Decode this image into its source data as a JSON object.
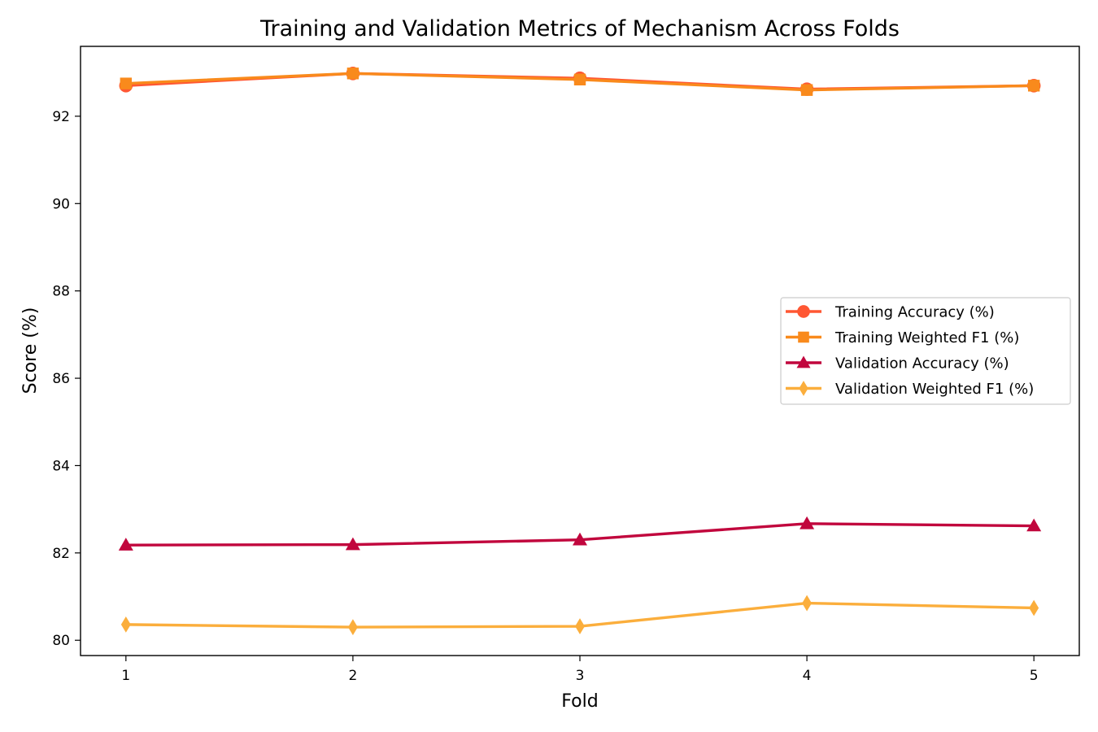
{
  "chart_data": {
    "type": "line",
    "title": "Training and Validation Metrics of Mechanism Across Folds",
    "xlabel": "Fold",
    "ylabel": "Score (%)",
    "x": [
      1,
      2,
      3,
      4,
      5
    ],
    "xlim": [
      0.8,
      5.2
    ],
    "ylim": [
      79.65,
      93.6
    ],
    "xticks": [
      1,
      2,
      3,
      4,
      5
    ],
    "yticks": [
      80,
      82,
      84,
      86,
      88,
      90,
      92
    ],
    "grid": false,
    "legend_position": "center-right",
    "series": [
      {
        "name": "Training Accuracy (%)",
        "color": "#FF5733",
        "marker": "circle",
        "values": [
          92.7,
          92.98,
          92.87,
          92.62,
          92.7
        ]
      },
      {
        "name": "Training Weighted F1 (%)",
        "color": "#F98A1C",
        "marker": "square",
        "values": [
          92.75,
          92.98,
          92.84,
          92.6,
          92.7
        ]
      },
      {
        "name": "Validation Accuracy (%)",
        "color": "#C1063D",
        "marker": "triangle",
        "values": [
          82.18,
          82.19,
          82.3,
          82.67,
          82.62
        ]
      },
      {
        "name": "Validation Weighted F1 (%)",
        "color": "#FBAE3C",
        "marker": "diamond",
        "values": [
          80.36,
          80.3,
          80.32,
          80.85,
          80.74
        ]
      }
    ]
  }
}
